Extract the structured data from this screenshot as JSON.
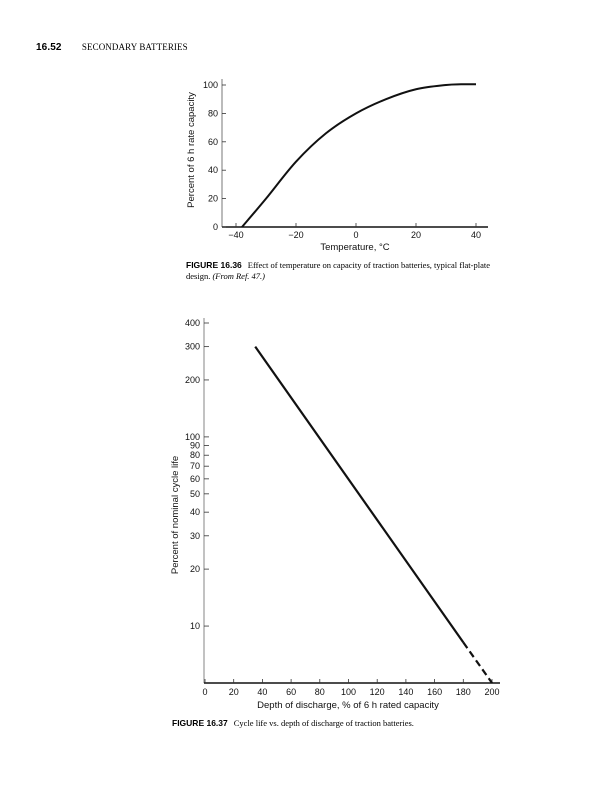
{
  "header": {
    "page_number": "16.52",
    "running_title": "SECONDARY BATTERIES"
  },
  "figure1": {
    "label": "FIGURE 16.36",
    "caption": "Effect of temperature on capacity of traction batteries, typical flat-plate design.",
    "source": "(From Ref. 47.)"
  },
  "figure2": {
    "label": "FIGURE 16.37",
    "caption": "Cycle life vs. depth of discharge of traction batteries."
  },
  "chart_data": [
    {
      "type": "line",
      "xlabel": "Temperature, °C",
      "ylabel": "Percent of 6 h rate capacity",
      "xlim": [
        -40,
        40
      ],
      "ylim": [
        0,
        100
      ],
      "x_ticks": [
        -40,
        -20,
        0,
        20,
        40
      ],
      "x_tick_labels": [
        "−40",
        "−20",
        "0",
        "20",
        "40"
      ],
      "y_ticks": [
        0,
        20,
        40,
        60,
        80,
        100
      ],
      "grid": false,
      "x": [
        -38,
        -30,
        -20,
        -10,
        0,
        10,
        20,
        30,
        35,
        40
      ],
      "y": [
        0,
        20,
        46,
        66,
        80,
        90,
        97,
        100,
        100.5,
        100.5
      ]
    },
    {
      "type": "line",
      "xlabel": "Depth of discharge, % of 6 h rated capacity",
      "ylabel": "Percent of nominal cycle life",
      "xlim": [
        0,
        200
      ],
      "ylim": [
        5,
        400
      ],
      "y_scale": "log",
      "x_ticks": [
        0,
        20,
        40,
        60,
        80,
        100,
        120,
        140,
        160,
        180,
        200
      ],
      "y_ticks": [
        10,
        20,
        30,
        40,
        50,
        60,
        70,
        80,
        90,
        100,
        200,
        300,
        400
      ],
      "grid": false,
      "series": [
        {
          "style": "solid",
          "x": [
            35,
            180
          ],
          "y": [
            300,
            8.2
          ]
        },
        {
          "style": "dashed",
          "x": [
            180,
            200
          ],
          "y": [
            8.2,
            5
          ]
        }
      ]
    }
  ]
}
